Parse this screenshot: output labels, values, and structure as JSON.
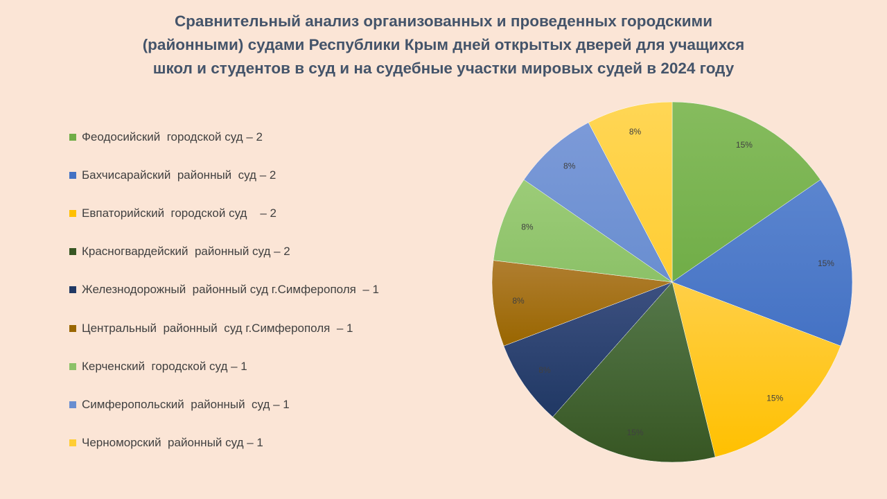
{
  "chart_data": {
    "type": "pie",
    "title_lines": [
      "Сравнительный анализ организованных и проведенных городскими",
      "(районными) судами Республики Крым дней открытых дверей для учащихся",
      "школ и студентов в суд и на судебные участки мировых судей в 2024 году"
    ],
    "legend_position": "left",
    "slices": [
      {
        "legend": "Феодосийский  городской суд – 2",
        "value": 2,
        "label": "15%",
        "color": "#70ad47",
        "light": "#86bc5e"
      },
      {
        "legend": "Бахчисарайский  районный  суд – 2",
        "value": 2,
        "label": "15%",
        "color": "#4472c4",
        "light": "#5b85cf"
      },
      {
        "legend": "Евпаторийский  городской суд    – 2",
        "value": 2,
        "label": "15%",
        "color": "#ffc000",
        "light": "#ffcf47"
      },
      {
        "legend": "Красногвардейский  районный суд – 2",
        "value": 2,
        "label": "15%",
        "color": "#375623",
        "light": "#55784a"
      },
      {
        "legend": "Железнодорожный  районный суд г.Симферополя  – 1",
        "value": 1,
        "label": "8%",
        "color": "#203864",
        "light": "#3c5080"
      },
      {
        "legend": "Центральный  районный  суд г.Симферополя  – 1",
        "value": 1,
        "label": "8%",
        "color": "#996600",
        "light": "#b07e30"
      },
      {
        "legend": "Керченский  городской суд – 1",
        "value": 1,
        "label": "8%",
        "color": "#8cc168",
        "light": "#9ccc78"
      },
      {
        "legend": "Симферопольский  районный  суд – 1",
        "value": 1,
        "label": "8%",
        "color": "#698ed0",
        "light": "#7c9ad8"
      },
      {
        "legend": "Черноморский  районный суд – 1",
        "value": 1,
        "label": "8%",
        "color": "#ffcd33",
        "light": "#ffd655"
      }
    ]
  }
}
